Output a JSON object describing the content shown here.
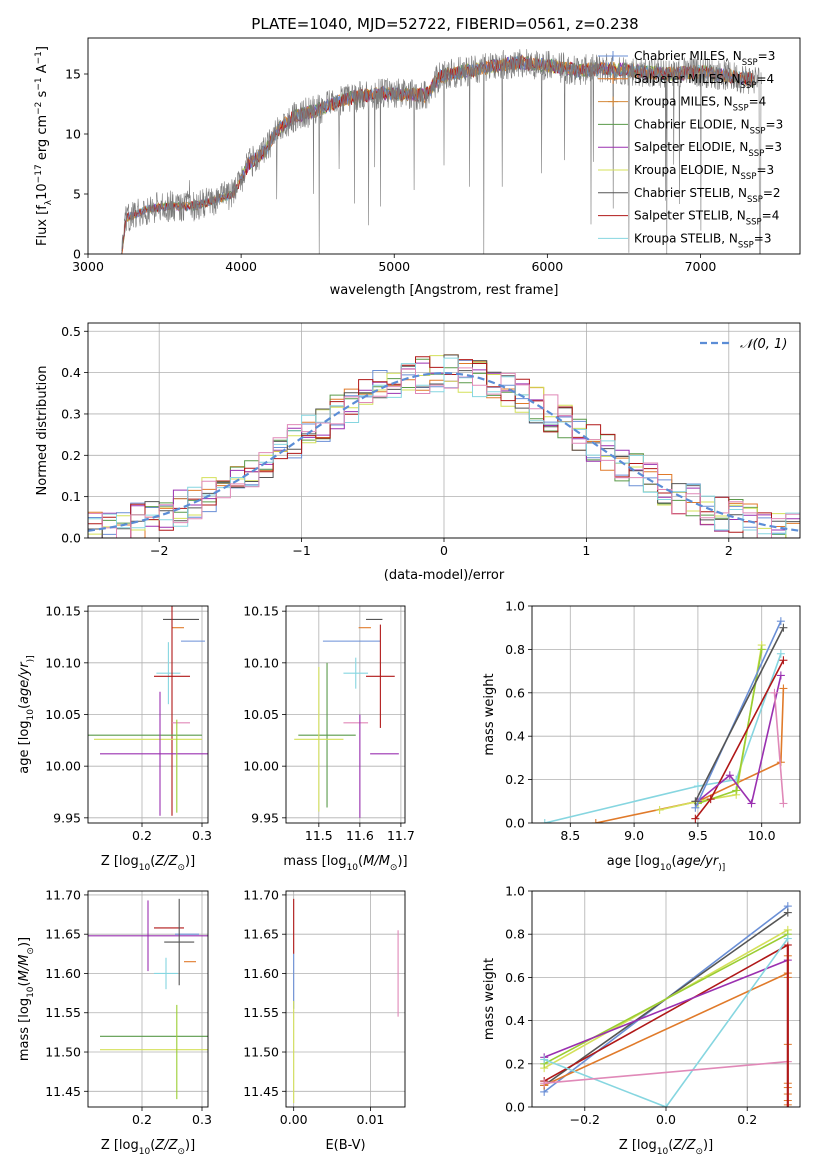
{
  "figure": {
    "title": "PLATE=1040, MJD=52722, FIBERID=0561, z=0.238"
  },
  "palette": {
    "chabrier_miles": "#6a8fd6",
    "salpeter_miles": "#e07a2a",
    "kroupa_miles": "#d58a3a",
    "chabrier_elodie": "#5a9a4a",
    "salpeter_elodie": "#9a30b0",
    "kroupa_elodie": "#d4e05a",
    "chabrier_stelib": "#555555",
    "salpeter_stelib": "#b01818",
    "kroupa_stelib": "#86d6e0",
    "pink": "#e089b8",
    "lime": "#9acd32",
    "model": "#5b8dd6",
    "grid": "#b0b0b0"
  },
  "chart_data": [
    {
      "id": "spectrum",
      "type": "line",
      "xlabel": "wavelength [Angstrom, rest frame]",
      "ylabel_parts": [
        "Flux [f",
        "λ",
        "10",
        "−17",
        " erg cm",
        "−2",
        " s",
        "−1",
        " A",
        "−1",
        "]"
      ],
      "xlim": [
        3000,
        7650
      ],
      "ylim": [
        0,
        18
      ],
      "xticks": [
        3000,
        4000,
        5000,
        6000,
        7000
      ],
      "yticks": [
        0,
        5,
        10,
        15
      ],
      "grid": false,
      "legend_position": "top-right",
      "legend": [
        {
          "label": "Chabrier MILES, N",
          "sub": "SSP",
          "n": "=3",
          "color_key": "chabrier_miles",
          "marker": true
        },
        {
          "label": "Salpeter MILES, N",
          "sub": "SSP",
          "n": "=4",
          "color_key": "salpeter_miles",
          "marker": true
        },
        {
          "label": "Kroupa MILES, N",
          "sub": "SSP",
          "n": "=4",
          "color_key": "kroupa_miles",
          "marker": true
        },
        {
          "label": "Chabrier ELODIE, N",
          "sub": "SSP",
          "n": "=3",
          "color_key": "chabrier_elodie",
          "marker": false
        },
        {
          "label": "Salpeter ELODIE, N",
          "sub": "SSP",
          "n": "=3",
          "color_key": "salpeter_elodie",
          "marker": false
        },
        {
          "label": "Kroupa ELODIE, N",
          "sub": "SSP",
          "n": "=3",
          "color_key": "kroupa_elodie",
          "marker": false
        },
        {
          "label": "Chabrier STELIB, N",
          "sub": "SSP",
          "n": "=2",
          "color_key": "chabrier_stelib",
          "marker": false
        },
        {
          "label": "Salpeter STELIB, N",
          "sub": "SSP",
          "n": "=4",
          "color_key": "salpeter_stelib",
          "marker": false
        },
        {
          "label": "Kroupa STELIB, N",
          "sub": "SSP",
          "n": "=3",
          "color_key": "kroupa_stelib",
          "marker": false
        }
      ],
      "continuum": {
        "x": [
          3220,
          3250,
          3400,
          3550,
          3700,
          3850,
          3950,
          4050,
          4150,
          4250,
          4350,
          4500,
          4650,
          4800,
          4950,
          5100,
          5200,
          5300,
          5450,
          5600,
          5800,
          6000,
          6200,
          6400,
          6600,
          6800,
          7000,
          7200,
          7350
        ],
        "y": [
          0,
          3.0,
          3.8,
          4.0,
          4.0,
          4.6,
          5.0,
          7.5,
          8.5,
          10.5,
          11.5,
          12.0,
          12.8,
          13.2,
          13.4,
          13.3,
          13.2,
          14.8,
          15.2,
          15.5,
          16.0,
          15.7,
          15.3,
          15.5,
          15.2,
          15.0,
          15.2,
          14.8,
          14.5
        ]
      }
    },
    {
      "id": "residuals",
      "type": "line",
      "xlabel": "(data-model)/error",
      "ylabel": "Normed distribution",
      "xlim": [
        -2.5,
        2.5
      ],
      "ylim": [
        0,
        0.52
      ],
      "xticks": [
        -2,
        -1,
        0,
        1,
        2
      ],
      "yticks": [
        0.0,
        0.1,
        0.2,
        0.3,
        0.4,
        0.5
      ],
      "grid": true,
      "legend_position": "top-right",
      "legend_label": "𝒩(0, 1)",
      "model": "standard normal pdf"
    },
    {
      "id": "age-vs-Z",
      "type": "scatter",
      "xlabel_parts": [
        "Z [log",
        "10",
        "(",
        "Z/Z",
        "⊙",
        ")]"
      ],
      "ylabel_parts": [
        "age  [log",
        "10",
        "(",
        "age/yr",
        ")]"
      ],
      "xlim": [
        0.11,
        0.31
      ],
      "ylim": [
        9.945,
        10.155
      ],
      "xticks": [
        0.2,
        0.3
      ],
      "yticks": [
        9.95,
        10.0,
        10.05,
        10.1,
        10.15
      ],
      "grid": true,
      "errorbars": [
        {
          "x": 0.265,
          "y": 10.142,
          "xerr": 0.03,
          "yerr": 0.0,
          "color_key": "chabrier_stelib"
        },
        {
          "x": 0.26,
          "y": 10.134,
          "xerr": 0.01,
          "yerr": 0.0,
          "color_key": "salpeter_miles"
        },
        {
          "x": 0.285,
          "y": 10.121,
          "xerr": 0.02,
          "yerr": 0.0,
          "color_key": "chabrier_miles"
        },
        {
          "x": 0.244,
          "y": 10.09,
          "xerr": 0.02,
          "yerr": 0.03,
          "color_key": "kroupa_stelib"
        },
        {
          "x": 0.25,
          "y": 10.087,
          "xerr": 0.03,
          "yerr": 0.135,
          "color_key": "salpeter_stelib"
        },
        {
          "x": 0.265,
          "y": 10.042,
          "xerr": 0.015,
          "yerr": 0.0,
          "color_key": "pink"
        },
        {
          "x": 0.2,
          "y": 10.03,
          "xerr": 0.1,
          "yerr": 0.0,
          "color_key": "chabrier_elodie"
        },
        {
          "x": 0.21,
          "y": 10.026,
          "xerr": 0.09,
          "yerr": 0.0,
          "color_key": "kroupa_elodie"
        },
        {
          "x": 0.23,
          "y": 10.012,
          "xerr": 0.1,
          "yerr": 0.06,
          "color_key": "salpeter_elodie"
        },
        {
          "x": 0.258,
          "y": 10.0,
          "xerr": 0.0,
          "yerr": 0.045,
          "color_key": "lime"
        }
      ]
    },
    {
      "id": "age-vs-mass",
      "type": "scatter",
      "xlabel_parts": [
        "mass [log",
        "10",
        "(",
        "M/M",
        "⊙",
        ")]"
      ],
      "xlim": [
        11.42,
        11.71
      ],
      "ylim": [
        9.945,
        10.155
      ],
      "xticks": [
        11.5,
        11.6,
        11.7
      ],
      "yticks": [
        9.95,
        10.0,
        10.05,
        10.1,
        10.15
      ],
      "grid": true,
      "errorbars": [
        {
          "x": 11.635,
          "y": 10.142,
          "xerr": 0.02,
          "yerr": 0.0,
          "color_key": "chabrier_stelib"
        },
        {
          "x": 11.612,
          "y": 10.134,
          "xerr": 0.015,
          "yerr": 0.0,
          "color_key": "salpeter_miles"
        },
        {
          "x": 11.58,
          "y": 10.121,
          "xerr": 0.07,
          "yerr": 0.0,
          "color_key": "chabrier_miles"
        },
        {
          "x": 11.59,
          "y": 10.09,
          "xerr": 0.03,
          "yerr": 0.015,
          "color_key": "kroupa_stelib"
        },
        {
          "x": 11.65,
          "y": 10.087,
          "xerr": 0.035,
          "yerr": 0.05,
          "color_key": "salpeter_stelib"
        },
        {
          "x": 11.59,
          "y": 10.042,
          "xerr": 0.03,
          "yerr": 0.0,
          "color_key": "pink"
        },
        {
          "x": 11.52,
          "y": 10.03,
          "xerr": 0.07,
          "yerr": 0.07,
          "color_key": "chabrier_elodie"
        },
        {
          "x": 11.5,
          "y": 10.026,
          "xerr": 0.06,
          "yerr": 0.07,
          "color_key": "kroupa_elodie"
        },
        {
          "x": 11.66,
          "y": 10.012,
          "xerr": 0.035,
          "yerr": 0.0,
          "color_key": "salpeter_elodie"
        },
        {
          "x": 11.6,
          "y": 10.0,
          "xerr": 0.0,
          "yerr": 0.05,
          "color_key": "salpeter_elodie"
        }
      ]
    },
    {
      "id": "mass-weight-vs-age",
      "type": "line",
      "xlabel_parts": [
        "age  [log",
        "10",
        "(",
        "age/yr",
        ")]"
      ],
      "ylabel": "mass weight",
      "xlim": [
        8.2,
        10.3
      ],
      "ylim": [
        0,
        1.0
      ],
      "xticks": [
        8.5,
        9.0,
        9.5,
        10.0
      ],
      "yticks": [
        0.0,
        0.2,
        0.4,
        0.6,
        0.8,
        1.0
      ],
      "grid": true,
      "series": [
        {
          "color_key": "kroupa_stelib",
          "x": [
            8.3,
            9.5,
            9.8,
            10.15
          ],
          "y": [
            0.0,
            0.17,
            0.2,
            0.78
          ]
        },
        {
          "color_key": "salpeter_miles",
          "x": [
            8.7,
            9.5,
            10.15,
            10.17
          ],
          "y": [
            0.0,
            0.1,
            0.28,
            0.62
          ]
        },
        {
          "color_key": "kroupa_elodie",
          "x": [
            9.2,
            9.5,
            9.8,
            10.0
          ],
          "y": [
            0.06,
            0.1,
            0.13,
            0.82
          ]
        },
        {
          "color_key": "lime",
          "x": [
            9.5,
            9.8,
            10.0
          ],
          "y": [
            0.09,
            0.15,
            0.8
          ]
        },
        {
          "color_key": "salpeter_stelib",
          "x": [
            9.48,
            9.6,
            10.17
          ],
          "y": [
            0.02,
            0.11,
            0.75
          ]
        },
        {
          "color_key": "salpeter_elodie",
          "x": [
            9.5,
            9.75,
            9.92,
            10.15
          ],
          "y": [
            0.1,
            0.22,
            0.09,
            0.68
          ]
        },
        {
          "color_key": "pink",
          "x": [
            10.1,
            10.17
          ],
          "y": [
            0.6,
            0.09
          ]
        },
        {
          "color_key": "chabrier_miles",
          "x": [
            9.48,
            10.15
          ],
          "y": [
            0.07,
            0.93
          ]
        },
        {
          "color_key": "chabrier_stelib",
          "x": [
            9.48,
            10.17
          ],
          "y": [
            0.1,
            0.9
          ]
        }
      ]
    },
    {
      "id": "mass-vs-Z",
      "type": "scatter",
      "xlabel_parts": [
        "Z [log",
        "10",
        "(",
        "Z/Z",
        "⊙",
        ")]"
      ],
      "ylabel_parts": [
        "mass [log",
        "10",
        "(",
        "M/M",
        "⊙",
        ")]"
      ],
      "xlim": [
        0.11,
        0.31
      ],
      "ylim": [
        11.43,
        11.705
      ],
      "xticks": [
        0.2,
        0.3
      ],
      "yticks": [
        11.45,
        11.5,
        11.55,
        11.6,
        11.65,
        11.7
      ],
      "grid": true,
      "errorbars": [
        {
          "x": 0.275,
          "y": 11.65,
          "xerr": 0.02,
          "yerr": 0.0,
          "color_key": "chabrier_miles"
        },
        {
          "x": 0.21,
          "y": 11.648,
          "xerr": 0.1,
          "yerr": 0.045,
          "color_key": "salpeter_elodie"
        },
        {
          "x": 0.245,
          "y": 11.658,
          "xerr": 0.025,
          "yerr": 0.0,
          "color_key": "salpeter_stelib"
        },
        {
          "x": 0.262,
          "y": 11.64,
          "xerr": 0.025,
          "yerr": 0.055,
          "color_key": "chabrier_stelib"
        },
        {
          "x": 0.28,
          "y": 11.615,
          "xerr": 0.01,
          "yerr": 0.0,
          "color_key": "salpeter_miles"
        },
        {
          "x": 0.24,
          "y": 11.6,
          "xerr": 0.02,
          "yerr": 0.02,
          "color_key": "kroupa_stelib"
        },
        {
          "x": 0.22,
          "y": 11.52,
          "xerr": 0.09,
          "yerr": 0.0,
          "color_key": "chabrier_elodie"
        },
        {
          "x": 0.22,
          "y": 11.503,
          "xerr": 0.09,
          "yerr": 0.0,
          "color_key": "kroupa_elodie"
        },
        {
          "x": 0.258,
          "y": 11.5,
          "xerr": 0.0,
          "yerr": 0.06,
          "color_key": "lime"
        }
      ]
    },
    {
      "id": "mass-vs-EBV",
      "type": "scatter",
      "xlabel": "E(B-V)",
      "xlim": [
        -0.001,
        0.0145
      ],
      "ylim": [
        11.43,
        11.705
      ],
      "xticks": [
        0.0,
        0.01
      ],
      "yticks": [
        11.45,
        11.5,
        11.55,
        11.6,
        11.65,
        11.7
      ],
      "grid": true,
      "errorbars": [
        {
          "x": 0.0,
          "y": 11.66,
          "xerr": 0.0,
          "yerr": 0.035,
          "color_key": "salpeter_stelib"
        },
        {
          "x": 0.0,
          "y": 11.59,
          "xerr": 0.0,
          "yerr": 0.035,
          "color_key": "chabrier_miles"
        },
        {
          "x": 0.0,
          "y": 11.5,
          "xerr": 0.0,
          "yerr": 0.065,
          "color_key": "kroupa_elodie"
        },
        {
          "x": 0.0136,
          "y": 11.6,
          "xerr": 0.0,
          "yerr": 0.055,
          "color_key": "pink"
        }
      ]
    },
    {
      "id": "mass-weight-vs-Z",
      "type": "line",
      "xlabel_parts": [
        "Z [log",
        "10",
        "(",
        "Z/Z",
        "⊙",
        ")]"
      ],
      "ylabel": "mass weight",
      "xlim": [
        -0.33,
        0.33
      ],
      "ylim": [
        0,
        1.0
      ],
      "xticks": [
        -0.2,
        0.0,
        0.2
      ],
      "yticks": [
        0.0,
        0.2,
        0.4,
        0.6,
        0.8,
        1.0
      ],
      "grid": true,
      "series": [
        {
          "color_key": "chabrier_miles",
          "x": [
            -0.3,
            0.3
          ],
          "y": [
            0.07,
            0.93
          ]
        },
        {
          "color_key": "chabrier_stelib",
          "x": [
            -0.3,
            0.3
          ],
          "y": [
            0.1,
            0.9
          ]
        },
        {
          "color_key": "kroupa_elodie",
          "x": [
            -0.3,
            0.3
          ],
          "y": [
            0.18,
            0.82
          ]
        },
        {
          "color_key": "lime",
          "x": [
            -0.3,
            0.3
          ],
          "y": [
            0.2,
            0.8
          ]
        },
        {
          "color_key": "salpeter_stelib",
          "x": [
            -0.3,
            0.3
          ],
          "y": [
            0.12,
            0.75
          ]
        },
        {
          "color_key": "salpeter_elodie",
          "x": [
            -0.3,
            0.3
          ],
          "y": [
            0.23,
            0.68
          ]
        },
        {
          "color_key": "salpeter_miles",
          "x": [
            -0.3,
            0.3
          ],
          "y": [
            0.1,
            0.62
          ]
        },
        {
          "color_key": "kroupa_stelib",
          "x": [
            -0.3,
            0.0,
            0.3
          ],
          "y": [
            0.22,
            0.0,
            0.78
          ]
        },
        {
          "color_key": "pink",
          "x": [
            -0.3,
            0.3
          ],
          "y": [
            0.11,
            0.21
          ]
        }
      ]
    }
  ]
}
